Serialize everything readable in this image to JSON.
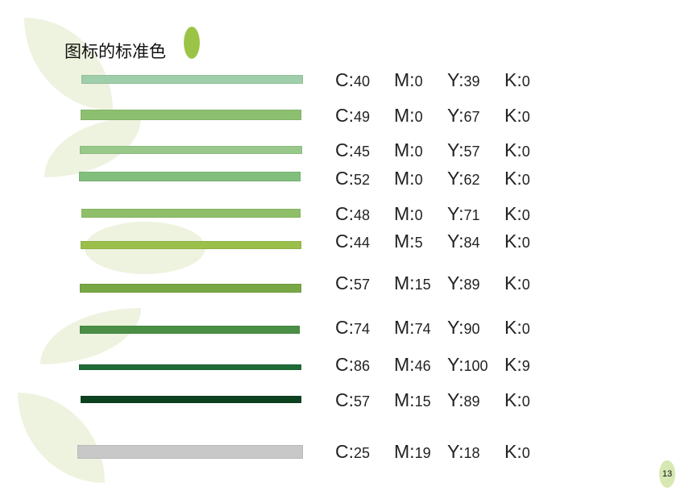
{
  "title": "图标的标准色",
  "page_number": "13",
  "accent": "#9bc447",
  "rows": [
    {
      "color": "#9fcfaa",
      "c": "40",
      "m": "0",
      "y": "39",
      "k": "0"
    },
    {
      "color": "#8cc070",
      "c": "49",
      "m": "0",
      "y": "67",
      "k": "0"
    },
    {
      "color": "#99c98a",
      "c": "45",
      "m": "0",
      "y": "57",
      "k": "0"
    },
    {
      "color": "#80bf7c",
      "c": "52",
      "m": "0",
      "y": "62",
      "k": "0"
    },
    {
      "color": "#8fc069",
      "c": "48",
      "m": "0",
      "y": "71",
      "k": "0"
    },
    {
      "color": "#9bbf4b",
      "c": "44",
      "m": "5",
      "y": "84",
      "k": "0"
    },
    {
      "color": "#78a845",
      "c": "57",
      "m": "15",
      "y": "89",
      "k": "0"
    },
    {
      "color": "#4a8f45",
      "c": "74",
      "m": "74",
      "y": "90",
      "k": "0"
    },
    {
      "color": "#1e6b38",
      "c": "86",
      "m": "46",
      "y": "100",
      "k": "9"
    },
    {
      "color": "#0c4220",
      "c": "57",
      "m": "15",
      "y": "89",
      "k": "0"
    },
    {
      "color": "#c8c8c8",
      "c": "25",
      "m": "19",
      "y": "18",
      "k": "0"
    }
  ]
}
